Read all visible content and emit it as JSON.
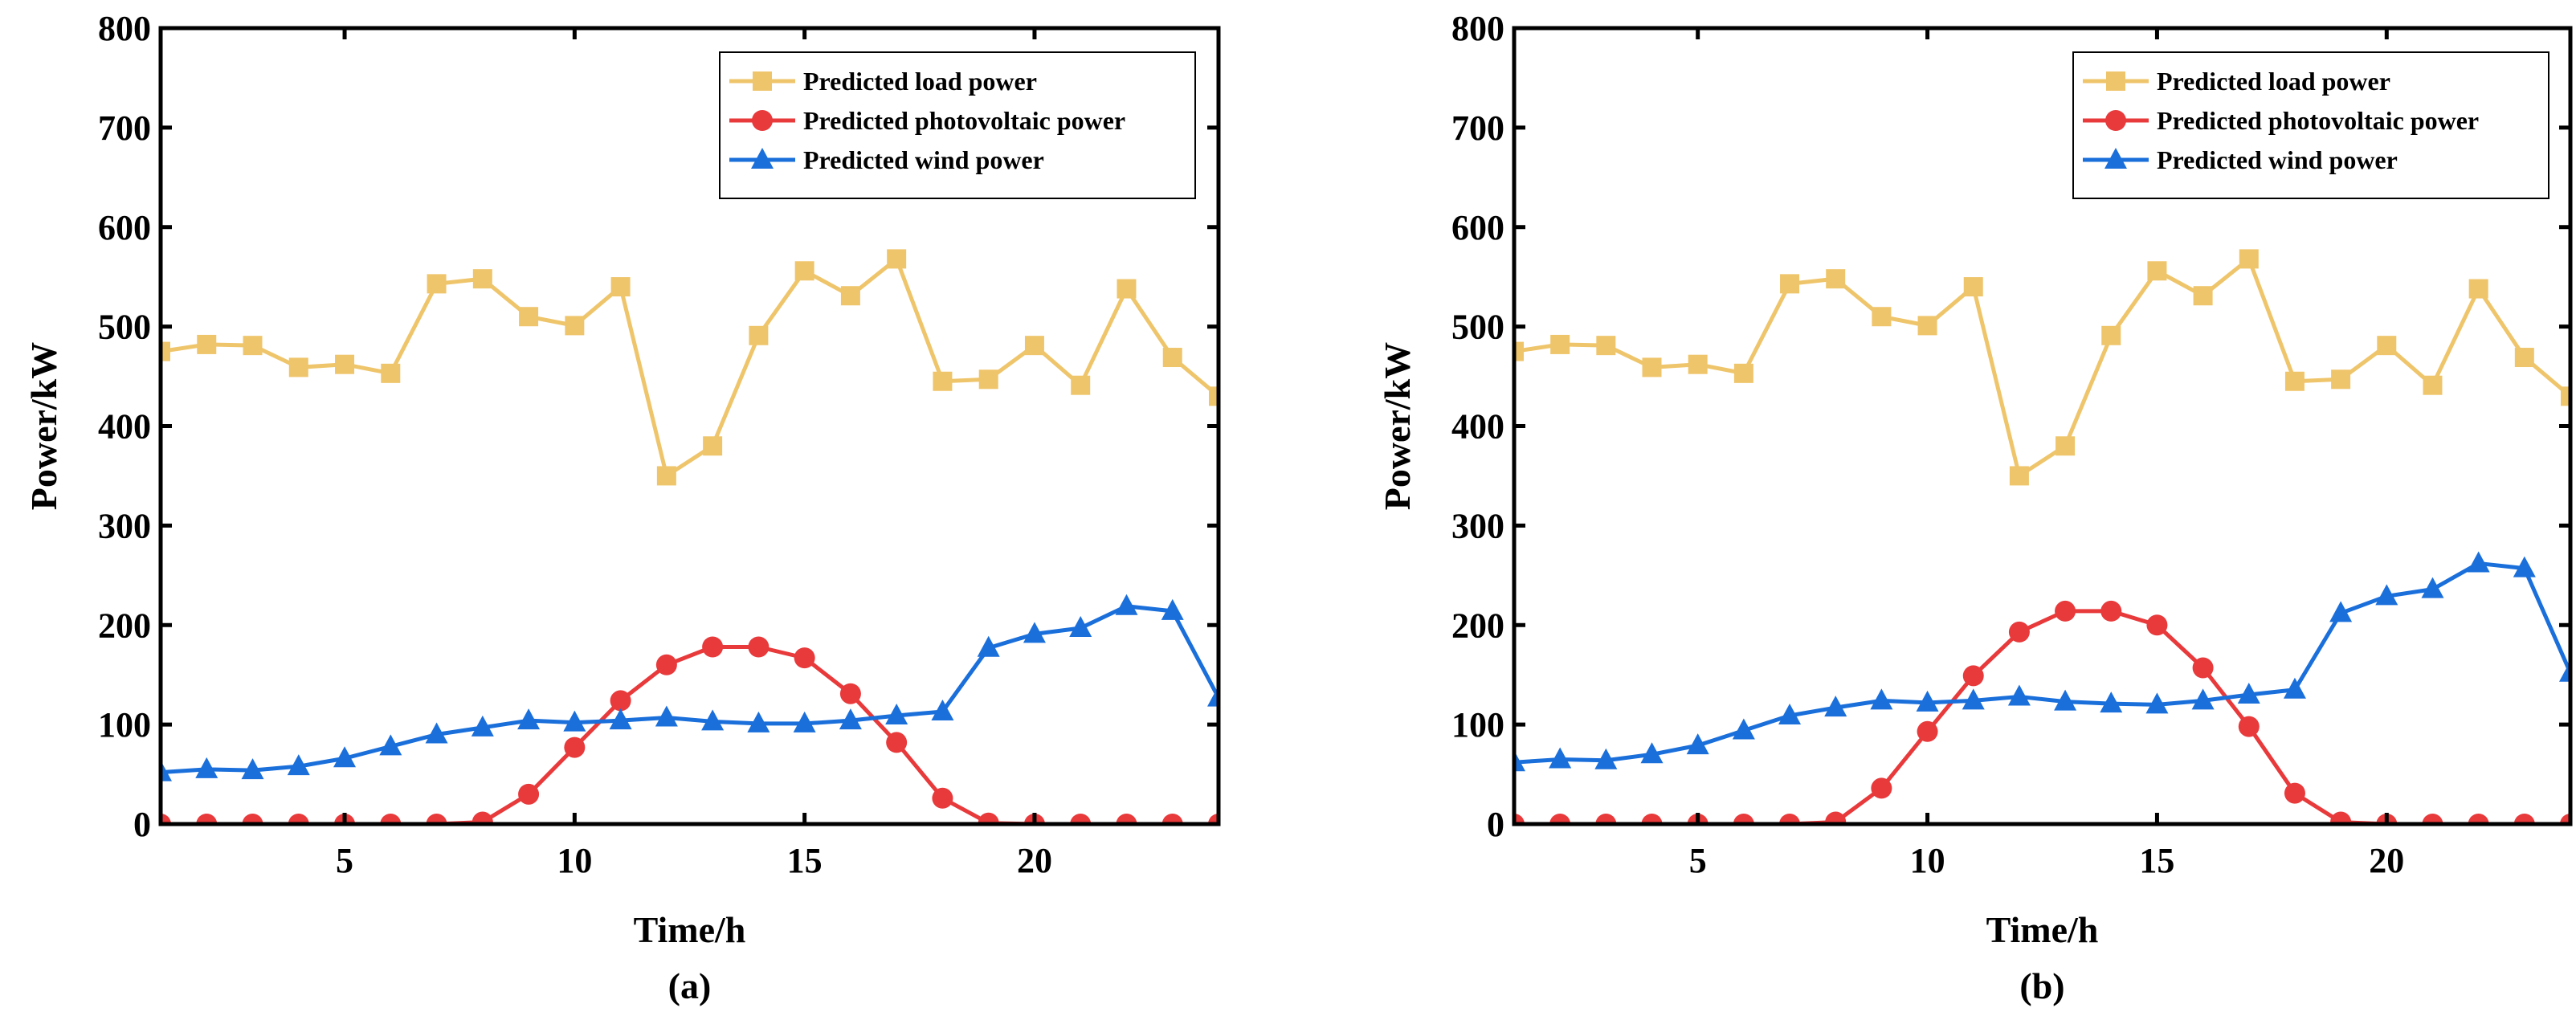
{
  "colors": {
    "load": "#EFC56B",
    "pv": "#E8393B",
    "wind": "#1A6FDB",
    "axis": "#000000"
  },
  "chart_data": [
    {
      "type": "line",
      "title": "",
      "caption": "(a)",
      "xlabel": "Time/h",
      "ylabel": "Power/kW",
      "xlim": [
        1,
        24
      ],
      "ylim": [
        0,
        800
      ],
      "xticks": [
        5,
        10,
        15,
        20
      ],
      "yticks": [
        0,
        100,
        200,
        300,
        400,
        500,
        600,
        700,
        800
      ],
      "legend_position": "top-right",
      "x": [
        1,
        2,
        3,
        4,
        5,
        6,
        7,
        8,
        9,
        10,
        11,
        12,
        13,
        14,
        15,
        16,
        17,
        18,
        19,
        20,
        21,
        22,
        23,
        24
      ],
      "series": [
        {
          "name": "Predicted load power",
          "marker": "square",
          "color_key": "load",
          "values": [
            475,
            482,
            481,
            459,
            462,
            453,
            543,
            548,
            510,
            501,
            540,
            350,
            380,
            491,
            556,
            531,
            568,
            445,
            447,
            481,
            441,
            538,
            469,
            430
          ]
        },
        {
          "name": "Predicted photovoltaic power",
          "marker": "circle",
          "color_key": "pv",
          "values": [
            0,
            0,
            0,
            0,
            0,
            0,
            0,
            2,
            30,
            77,
            124,
            160,
            178,
            178,
            167,
            131,
            82,
            26,
            1,
            0,
            0,
            0,
            0,
            0
          ]
        },
        {
          "name": "Predicted wind power",
          "marker": "triangle",
          "color_key": "wind",
          "values": [
            52,
            55,
            54,
            58,
            66,
            78,
            90,
            97,
            104,
            102,
            104,
            107,
            103,
            101,
            101,
            104,
            109,
            113,
            177,
            191,
            197,
            219,
            214,
            127
          ]
        }
      ]
    },
    {
      "type": "line",
      "title": "",
      "caption": "(b)",
      "xlabel": "Time/h",
      "ylabel": "Power/kW",
      "xlim": [
        1,
        24
      ],
      "ylim": [
        0,
        800
      ],
      "xticks": [
        5,
        10,
        15,
        20
      ],
      "yticks": [
        0,
        100,
        200,
        300,
        400,
        500,
        600,
        700,
        800
      ],
      "legend_position": "top-right",
      "x": [
        1,
        2,
        3,
        4,
        5,
        6,
        7,
        8,
        9,
        10,
        11,
        12,
        13,
        14,
        15,
        16,
        17,
        18,
        19,
        20,
        21,
        22,
        23,
        24
      ],
      "series": [
        {
          "name": "Predicted load power",
          "marker": "square",
          "color_key": "load",
          "values": [
            475,
            482,
            481,
            459,
            462,
            453,
            543,
            548,
            510,
            501,
            540,
            350,
            380,
            491,
            556,
            531,
            568,
            445,
            447,
            481,
            441,
            538,
            469,
            430
          ]
        },
        {
          "name": "Predicted photovoltaic power",
          "marker": "circle",
          "color_key": "pv",
          "values": [
            0,
            0,
            0,
            0,
            0,
            0,
            0,
            2,
            36,
            93,
            149,
            193,
            214,
            214,
            200,
            157,
            98,
            31,
            2,
            0,
            0,
            0,
            0,
            0
          ]
        },
        {
          "name": "Predicted wind power",
          "marker": "triangle",
          "color_key": "wind",
          "values": [
            62,
            65,
            64,
            70,
            79,
            94,
            109,
            117,
            124,
            122,
            124,
            128,
            123,
            121,
            120,
            124,
            130,
            135,
            212,
            229,
            236,
            262,
            257,
            152
          ]
        }
      ]
    }
  ]
}
